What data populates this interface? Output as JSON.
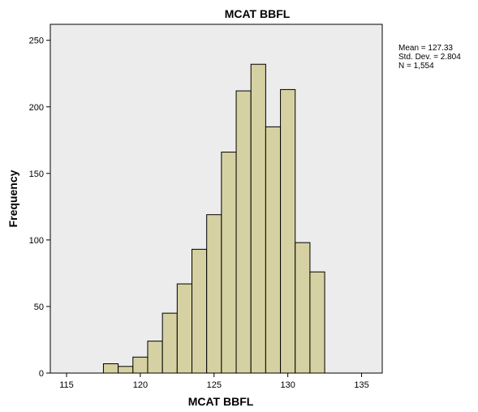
{
  "chart_data": {
    "type": "bar",
    "title": "MCAT BBFL",
    "xlabel": "MCAT BBFL",
    "ylabel": "Frequency",
    "bin_width": 1,
    "bins": [
      {
        "start": 117.5,
        "end": 118.5,
        "value": 7
      },
      {
        "start": 118.5,
        "end": 119.5,
        "value": 5
      },
      {
        "start": 119.5,
        "end": 120.5,
        "value": 12
      },
      {
        "start": 120.5,
        "end": 121.5,
        "value": 24
      },
      {
        "start": 121.5,
        "end": 122.5,
        "value": 45
      },
      {
        "start": 122.5,
        "end": 123.5,
        "value": 67
      },
      {
        "start": 123.5,
        "end": 124.5,
        "value": 93
      },
      {
        "start": 124.5,
        "end": 125.5,
        "value": 119
      },
      {
        "start": 125.5,
        "end": 126.5,
        "value": 166
      },
      {
        "start": 126.5,
        "end": 127.5,
        "value": 212
      },
      {
        "start": 127.5,
        "end": 128.5,
        "value": 232
      },
      {
        "start": 128.5,
        "end": 129.5,
        "value": 185
      },
      {
        "start": 129.5,
        "end": 130.5,
        "value": 213
      },
      {
        "start": 130.5,
        "end": 131.5,
        "value": 98
      },
      {
        "start": 131.5,
        "end": 132.5,
        "value": 76
      }
    ],
    "xlim": [
      113.9,
      136.4
    ],
    "ylim": [
      0,
      262
    ],
    "xticks": [
      115,
      120,
      125,
      130,
      135
    ],
    "yticks": [
      0,
      50,
      100,
      150,
      200,
      250
    ],
    "stats": [
      "Mean = 127.33",
      "Std. Dev. = 2.804",
      "N = 1,554"
    ],
    "grid": false,
    "colors": {
      "plot_background": "#ececec",
      "bar_fill": "#d6d1a2",
      "bar_stroke": "#000000"
    }
  }
}
